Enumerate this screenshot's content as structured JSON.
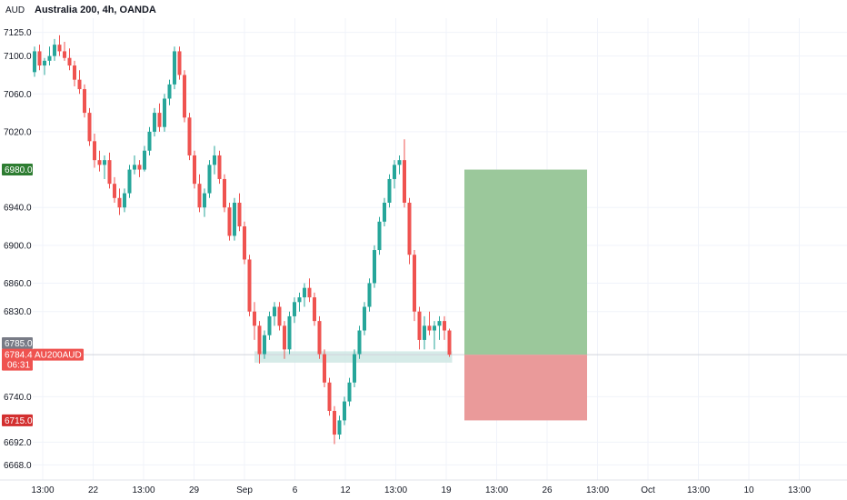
{
  "header": {
    "currency": "AUD",
    "title": "Australia 200, 4h, OANDA"
  },
  "colors": {
    "up": "#26a69a",
    "down": "#ef5350",
    "grid": "#f0f3fa",
    "profit_zone": "#9bc89b",
    "loss_zone": "#ea9a9a",
    "support_zone": "#cfe8e4",
    "target_tag": "#2e7d32",
    "stop_tag": "#d32f2f",
    "last_tag": "#ef5350",
    "grey_tag": "#787b86"
  },
  "chart_data": {
    "type": "candlestick",
    "symbol": "AU200AUD",
    "ylim": [
      6652,
      7140
    ],
    "y_ticks": [
      "7125.0",
      "7100.0",
      "7060.0",
      "7020.0",
      "6940.0",
      "6900.0",
      "6860.0",
      "6830.0",
      "6740.0",
      "6692.0",
      "6668.0"
    ],
    "x_ticks": [
      "13:00",
      "22",
      "13:00",
      "29",
      "Sep",
      "6",
      "12",
      "13:00",
      "19",
      "13:00",
      "26",
      "13:00",
      "Oct",
      "13:00",
      "10",
      "13:00"
    ],
    "price_labels": {
      "target": "6980.0",
      "prev": "6785.0",
      "last_price": "6784.4",
      "last_symbol": "AU200AUD",
      "countdown": "06:31",
      "stop": "6715.0"
    },
    "position": {
      "entry": 6784.4,
      "target": 6980.0,
      "stop": 6715.0
    },
    "support_zone": {
      "low": 6776,
      "high": 6788
    },
    "candles": [
      [
        7083,
        7110,
        7078,
        7105
      ],
      [
        7105,
        7112,
        7085,
        7090
      ],
      [
        7090,
        7098,
        7080,
        7095
      ],
      [
        7095,
        7110,
        7090,
        7100
      ],
      [
        7100,
        7118,
        7095,
        7112
      ],
      [
        7112,
        7122,
        7100,
        7105
      ],
      [
        7105,
        7115,
        7095,
        7098
      ],
      [
        7098,
        7108,
        7085,
        7090
      ],
      [
        7090,
        7095,
        7068,
        7075
      ],
      [
        7075,
        7085,
        7060,
        7065
      ],
      [
        7065,
        7070,
        7035,
        7040
      ],
      [
        7040,
        7045,
        7005,
        7010
      ],
      [
        7010,
        7018,
        6982,
        6990
      ],
      [
        6990,
        7000,
        6978,
        6985
      ],
      [
        6985,
        6995,
        6970,
        6990
      ],
      [
        6990,
        6998,
        6960,
        6965
      ],
      [
        6965,
        6972,
        6945,
        6950
      ],
      [
        6950,
        6960,
        6932,
        6940
      ],
      [
        6940,
        6960,
        6935,
        6955
      ],
      [
        6955,
        6985,
        6950,
        6980
      ],
      [
        6980,
        6995,
        6975,
        6985
      ],
      [
        6985,
        6990,
        6972,
        6980
      ],
      [
        6980,
        7005,
        6978,
        7000
      ],
      [
        7000,
        7025,
        6995,
        7020
      ],
      [
        7020,
        7045,
        7015,
        7040
      ],
      [
        7040,
        7050,
        7020,
        7025
      ],
      [
        7025,
        7060,
        7020,
        7055
      ],
      [
        7055,
        7075,
        7048,
        7070
      ],
      [
        7070,
        7110,
        7065,
        7105
      ],
      [
        7105,
        7110,
        7075,
        7080
      ],
      [
        7080,
        7085,
        7030,
        7035
      ],
      [
        7035,
        7040,
        6990,
        6995
      ],
      [
        6995,
        7000,
        6960,
        6965
      ],
      [
        6965,
        6975,
        6935,
        6940
      ],
      [
        6940,
        6960,
        6930,
        6955
      ],
      [
        6955,
        6990,
        6950,
        6985
      ],
      [
        6985,
        7005,
        6975,
        6995
      ],
      [
        6995,
        7000,
        6965,
        6970
      ],
      [
        6970,
        6975,
        6935,
        6940
      ],
      [
        6940,
        6945,
        6905,
        6910
      ],
      [
        6910,
        6950,
        6905,
        6945
      ],
      [
        6945,
        6955,
        6915,
        6920
      ],
      [
        6920,
        6925,
        6880,
        6885
      ],
      [
        6885,
        6890,
        6825,
        6830
      ],
      [
        6830,
        6840,
        6800,
        6815
      ],
      [
        6815,
        6820,
        6775,
        6785
      ],
      [
        6785,
        6810,
        6780,
        6805
      ],
      [
        6805,
        6830,
        6800,
        6825
      ],
      [
        6825,
        6840,
        6815,
        6835
      ],
      [
        6835,
        6840,
        6810,
        6815
      ],
      [
        6815,
        6820,
        6780,
        6790
      ],
      [
        6790,
        6830,
        6785,
        6825
      ],
      [
        6825,
        6845,
        6818,
        6840
      ],
      [
        6840,
        6850,
        6830,
        6845
      ],
      [
        6845,
        6860,
        6835,
        6855
      ],
      [
        6855,
        6865,
        6840,
        6845
      ],
      [
        6845,
        6850,
        6815,
        6820
      ],
      [
        6820,
        6825,
        6780,
        6785
      ],
      [
        6785,
        6790,
        6750,
        6755
      ],
      [
        6755,
        6760,
        6720,
        6725
      ],
      [
        6725,
        6730,
        6690,
        6700
      ],
      [
        6700,
        6720,
        6695,
        6715
      ],
      [
        6715,
        6740,
        6710,
        6735
      ],
      [
        6735,
        6760,
        6730,
        6755
      ],
      [
        6755,
        6790,
        6750,
        6785
      ],
      [
        6785,
        6815,
        6780,
        6810
      ],
      [
        6810,
        6840,
        6805,
        6835
      ],
      [
        6835,
        6865,
        6830,
        6860
      ],
      [
        6860,
        6900,
        6855,
        6895
      ],
      [
        6895,
        6930,
        6890,
        6925
      ],
      [
        6925,
        6950,
        6920,
        6945
      ],
      [
        6945,
        6975,
        6940,
        6970
      ],
      [
        6970,
        6990,
        6960,
        6985
      ],
      [
        6985,
        6995,
        6975,
        6990
      ],
      [
        6990,
        7012,
        6940,
        6945
      ],
      [
        6945,
        6950,
        6880,
        6890
      ],
      [
        6890,
        6895,
        6820,
        6830
      ],
      [
        6830,
        6835,
        6790,
        6800
      ],
      [
        6800,
        6825,
        6790,
        6815
      ],
      [
        6815,
        6830,
        6805,
        6810
      ],
      [
        6810,
        6820,
        6790,
        6815
      ],
      [
        6815,
        6825,
        6800,
        6820
      ],
      [
        6820,
        6825,
        6800,
        6810
      ],
      [
        6810,
        6812,
        6782,
        6784.4
      ]
    ]
  }
}
